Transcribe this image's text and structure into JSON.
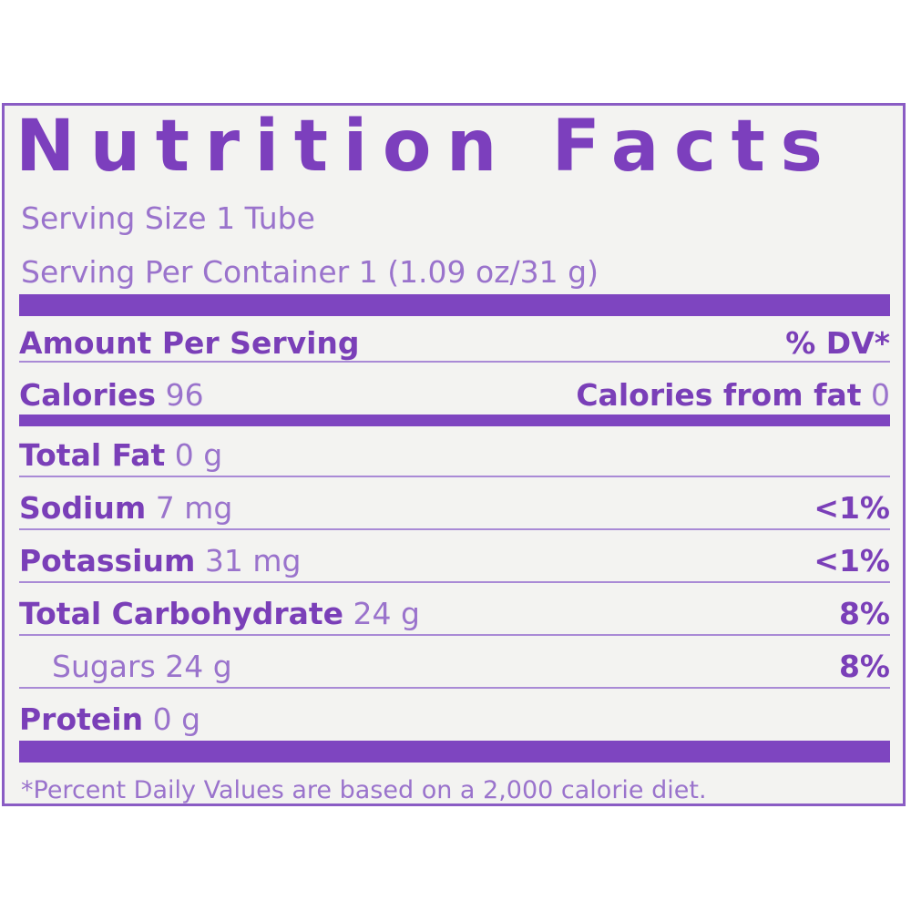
{
  "panel": {
    "title": "Nutrition Facts",
    "serving_size": "Serving Size 1 Tube",
    "servings_per_container": "Serving Per Container 1 (1.09 oz/31 g)",
    "amount_per_serving": "Amount Per Serving",
    "dv_header": "% DV*",
    "calories_label": "Calories",
    "calories_value": "96",
    "calories_from_fat_label": "Calories from fat",
    "calories_from_fat_value": "0",
    "nutrients": [
      {
        "label": "Total Fat",
        "amount": "0 g",
        "dv": ""
      },
      {
        "label": "Sodium",
        "amount": "7 mg",
        "dv": "<1%"
      },
      {
        "label": "Potassium",
        "amount": "31 mg",
        "dv": "<1%"
      },
      {
        "label": "Total Carbohydrate",
        "amount": "24 g",
        "dv": "8%"
      },
      {
        "label": "Sugars 24 g",
        "amount": "",
        "dv": "8%"
      },
      {
        "label": "Protein",
        "amount": "0 g",
        "dv": ""
      }
    ],
    "footnote": "*Percent Daily Values are based on a 2,000 calorie diet."
  },
  "colors": {
    "accent": "#7e45c0",
    "text_light": "#9a73cc",
    "background": "#f3f3f1"
  }
}
